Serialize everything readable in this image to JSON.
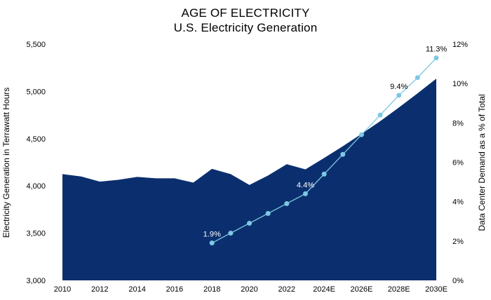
{
  "chart_data": {
    "type": "area",
    "title": "AGE OF ELECTRICITY",
    "subtitle": "U.S. Electricity Generation",
    "x": [
      "2010",
      "2011",
      "2012",
      "2013",
      "2014",
      "2015",
      "2016",
      "2017",
      "2018",
      "2019",
      "2020",
      "2021",
      "2022",
      "2023",
      "2024E",
      "2025E",
      "2026E",
      "2027E",
      "2028E",
      "2029E",
      "2030E"
    ],
    "xtick_labels": [
      "2010",
      "2012",
      "2014",
      "2016",
      "2018",
      "2020",
      "2022",
      "2024E",
      "2026E",
      "2028E",
      "2030E"
    ],
    "ylabel_left": "Electricity Generation in Terrawatt Hours",
    "ylabel_right": "Data Center Demand as a % of Total",
    "yticks_left": [
      "3,000",
      "3,500",
      "4,000",
      "4,500",
      "5,000",
      "5,500"
    ],
    "yticks_right": [
      "0%",
      "2%",
      "4%",
      "6%",
      "8%",
      "10%",
      "12%"
    ],
    "ylim_left": [
      3000,
      5500
    ],
    "ylim_right": [
      0,
      12
    ],
    "grid": false,
    "colors": {
      "area": "#0b2f6e",
      "line": "#7ec8e3",
      "label_light": "#ffffff",
      "label_dark": "#000000"
    },
    "series": [
      {
        "name": "",
        "axis": "left",
        "kind": "area",
        "x": [
          "2010",
          "2011",
          "2012",
          "2013",
          "2014",
          "2015",
          "2016",
          "2017",
          "2018",
          "2019",
          "2020",
          "2021",
          "2022",
          "2023",
          "2024E",
          "2025E",
          "2026E",
          "2027E",
          "2028E",
          "2029E",
          "2030E"
        ],
        "values": [
          4125,
          4100,
          4045,
          4065,
          4095,
          4080,
          4080,
          4035,
          4180,
          4125,
          4010,
          4110,
          4230,
          4175,
          4295,
          4420,
          4550,
          4685,
          4830,
          4980,
          5135
        ]
      },
      {
        "name": "",
        "axis": "right",
        "kind": "line",
        "x": [
          "2018",
          "2019",
          "2020",
          "2021",
          "2022",
          "2023",
          "2024E",
          "2025E",
          "2026E",
          "2027E",
          "2028E",
          "2029E",
          "2030E"
        ],
        "values": [
          1.9,
          2.4,
          2.9,
          3.4,
          3.9,
          4.4,
          5.4,
          6.4,
          7.4,
          8.4,
          9.4,
          10.3,
          11.3
        ]
      }
    ],
    "annotations": [
      {
        "x": "2018",
        "text": "1.9%"
      },
      {
        "x": "2023",
        "text": "4.4%"
      },
      {
        "x": "2028E",
        "text": "9.4%"
      },
      {
        "x": "2030E",
        "text": "11.3%"
      }
    ]
  }
}
